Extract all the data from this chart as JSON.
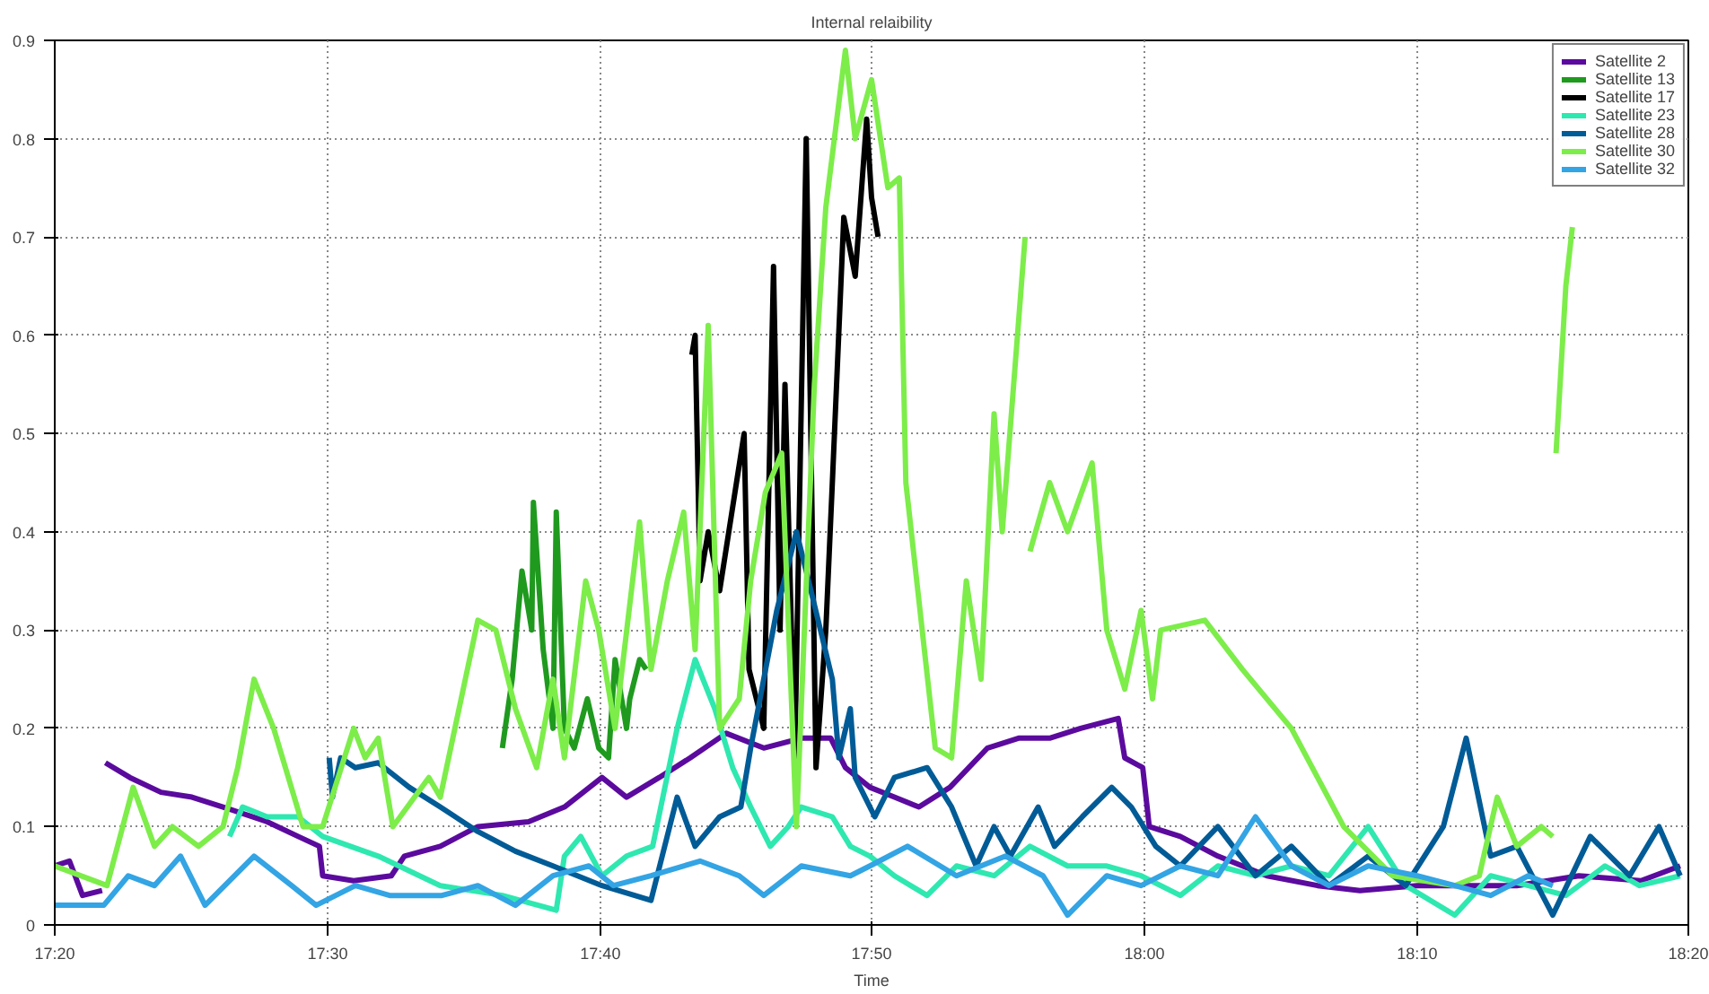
{
  "chart_data": {
    "type": "line",
    "title": "Internal relaibility",
    "xlabel": "Time",
    "xlim": [
      17.333,
      18.333
    ],
    "ylim": [
      0,
      0.9
    ],
    "xticks": [
      {
        "value": 17.333,
        "label": "17:20"
      },
      {
        "value": 17.5,
        "label": "17:30"
      },
      {
        "value": 17.667,
        "label": "17:40"
      },
      {
        "value": 17.833,
        "label": "17:50"
      },
      {
        "value": 18.0,
        "label": "18:00"
      },
      {
        "value": 18.167,
        "label": "18:10"
      },
      {
        "value": 18.333,
        "label": "18:20"
      }
    ],
    "yticks": [
      0,
      0.1,
      0.2,
      0.3,
      0.4,
      0.5,
      0.6,
      0.7,
      0.8,
      0.9
    ],
    "grid": true,
    "legend": "top right",
    "line_style": "solid",
    "series": [
      {
        "name": "Satellite 2",
        "color": "#5b0a9e",
        "x": [
          17.333,
          17.342,
          17.35,
          17.362,
          17.363,
          17.364,
          17.379,
          17.398,
          17.417,
          17.436,
          17.463,
          17.482,
          17.495,
          17.497,
          17.516,
          17.539,
          17.547,
          17.569,
          17.592,
          17.623,
          17.645,
          17.668,
          17.683,
          17.703,
          17.722,
          17.744,
          17.767,
          17.79,
          17.808,
          17.817,
          17.832,
          17.847,
          17.862,
          17.881,
          17.904,
          17.923,
          17.942,
          17.961,
          17.984,
          17.988,
          17.999,
          18.003,
          18.022,
          18.045,
          18.075,
          18.106,
          18.132,
          18.167,
          18.19,
          18.228,
          18.266,
          18.304,
          18.328
        ],
        "values": [
          0.06,
          0.065,
          0.03,
          0.035,
          null,
          0.165,
          0.15,
          0.135,
          0.13,
          0.12,
          0.105,
          0.09,
          0.08,
          0.05,
          0.045,
          0.05,
          0.07,
          0.08,
          0.1,
          0.105,
          0.12,
          0.15,
          0.13,
          0.15,
          0.17,
          0.195,
          0.18,
          0.19,
          0.19,
          0.16,
          0.14,
          0.13,
          0.12,
          0.14,
          0.18,
          0.19,
          0.19,
          0.2,
          0.21,
          0.17,
          0.16,
          0.1,
          0.09,
          0.07,
          0.05,
          0.04,
          0.035,
          0.04,
          0.04,
          0.04,
          0.05,
          0.045,
          0.06
        ]
      },
      {
        "name": "Satellite 13",
        "color": "#1f9a1f",
        "x": [
          17.607,
          17.613,
          17.619,
          17.625,
          17.626,
          17.632,
          17.638,
          17.64,
          17.645,
          17.651,
          17.659,
          17.666,
          17.672,
          17.676,
          17.683,
          17.685,
          17.691,
          17.695
        ],
        "values": [
          0.18,
          0.25,
          0.36,
          0.3,
          0.43,
          0.28,
          0.2,
          0.42,
          0.2,
          0.18,
          0.23,
          0.18,
          0.17,
          0.27,
          0.2,
          0.23,
          0.27,
          0.26
        ]
      },
      {
        "name": "Satellite 17",
        "color": "#000000",
        "x": [
          17.723,
          17.725,
          17.728,
          17.733,
          17.74,
          17.755,
          17.758,
          17.767,
          17.773,
          17.777,
          17.78,
          17.786,
          17.793,
          17.799,
          17.805,
          17.809,
          17.816,
          17.823,
          17.83,
          17.833,
          17.837
        ],
        "values": [
          0.58,
          0.6,
          0.35,
          0.4,
          0.34,
          0.5,
          0.26,
          0.2,
          0.67,
          0.3,
          0.55,
          0.17,
          0.8,
          0.16,
          0.3,
          0.45,
          0.72,
          0.66,
          0.82,
          0.74,
          0.7
        ]
      },
      {
        "name": "Satellite 23",
        "color": "#2ee8b0",
        "x": [
          17.44,
          17.448,
          17.463,
          17.482,
          17.497,
          17.531,
          17.569,
          17.607,
          17.64,
          17.645,
          17.655,
          17.668,
          17.683,
          17.699,
          17.714,
          17.725,
          17.737,
          17.748,
          17.759,
          17.771,
          17.782,
          17.79,
          17.809,
          17.82,
          17.832,
          17.847,
          17.867,
          17.885,
          17.908,
          17.93,
          17.953,
          17.977,
          17.998,
          18.022,
          18.045,
          18.068,
          18.09,
          18.113,
          18.137,
          18.16,
          18.19,
          18.212,
          18.235,
          18.258,
          18.282,
          18.303,
          18.328
        ],
        "values": [
          0.09,
          0.12,
          0.11,
          0.11,
          0.09,
          0.07,
          0.04,
          0.03,
          0.015,
          0.07,
          0.09,
          0.05,
          0.07,
          0.08,
          0.2,
          0.27,
          0.22,
          0.16,
          0.12,
          0.08,
          0.1,
          0.12,
          0.11,
          0.08,
          0.07,
          0.05,
          0.03,
          0.06,
          0.05,
          0.08,
          0.06,
          0.06,
          0.05,
          0.03,
          0.06,
          0.05,
          0.06,
          0.05,
          0.1,
          0.04,
          0.01,
          0.05,
          0.04,
          0.03,
          0.06,
          0.04,
          0.05
        ]
      },
      {
        "name": "Satellite 28",
        "color": "#005b96",
        "x": [
          17.501,
          17.503,
          17.508,
          17.517,
          17.531,
          17.55,
          17.569,
          17.592,
          17.615,
          17.638,
          17.668,
          17.698,
          17.714,
          17.725,
          17.74,
          17.753,
          17.759,
          17.775,
          17.787,
          17.793,
          17.809,
          17.813,
          17.82,
          17.823,
          17.835,
          17.847,
          17.867,
          17.882,
          17.897,
          17.908,
          17.918,
          17.935,
          17.945,
          17.962,
          17.98,
          17.992,
          18.007,
          18.022,
          18.045,
          18.068,
          18.09,
          18.113,
          18.137,
          18.16,
          18.183,
          18.197,
          18.212,
          18.228,
          18.25,
          18.273,
          18.297,
          18.315,
          18.328
        ],
        "values": [
          0.17,
          0.13,
          0.17,
          0.16,
          0.165,
          0.14,
          0.12,
          0.095,
          0.075,
          0.06,
          0.04,
          0.025,
          0.13,
          0.08,
          0.11,
          0.12,
          0.18,
          0.32,
          0.4,
          0.36,
          0.25,
          0.17,
          0.22,
          0.15,
          0.11,
          0.15,
          0.16,
          0.12,
          0.06,
          0.1,
          0.07,
          0.12,
          0.08,
          0.11,
          0.14,
          0.12,
          0.08,
          0.06,
          0.1,
          0.05,
          0.08,
          0.04,
          0.07,
          0.04,
          0.1,
          0.19,
          0.07,
          0.08,
          0.01,
          0.09,
          0.05,
          0.1,
          0.05
        ]
      },
      {
        "name": "Satellite 30",
        "color": "#7ded4a",
        "x": [
          17.333,
          17.365,
          17.381,
          17.394,
          17.405,
          17.421,
          17.436,
          17.445,
          17.455,
          17.467,
          17.485,
          17.497,
          17.516,
          17.523,
          17.531,
          17.54,
          17.562,
          17.569,
          17.592,
          17.603,
          17.615,
          17.628,
          17.638,
          17.645,
          17.658,
          17.666,
          17.676,
          17.691,
          17.698,
          17.708,
          17.718,
          17.725,
          17.733,
          17.74,
          17.752,
          17.759,
          17.768,
          17.778,
          17.787,
          17.798,
          17.805,
          17.817,
          17.823,
          17.833,
          17.843,
          17.85,
          17.854,
          17.862,
          17.872,
          17.882,
          17.891,
          17.9,
          17.908,
          17.913,
          17.927,
          17.928,
          17.93,
          17.942,
          17.953,
          17.968,
          17.977,
          17.988,
          17.998,
          18.005,
          18.01,
          18.037,
          18.06,
          18.09,
          18.122,
          18.152,
          18.19,
          18.205,
          18.216,
          18.228,
          18.243,
          18.25,
          18.251,
          18.252,
          18.258,
          18.262
        ],
        "values": [
          0.06,
          0.04,
          0.14,
          0.08,
          0.1,
          0.08,
          0.1,
          0.16,
          0.25,
          0.2,
          0.1,
          0.1,
          0.2,
          0.17,
          0.19,
          0.1,
          0.15,
          0.13,
          0.31,
          0.3,
          0.22,
          0.16,
          0.25,
          0.17,
          0.35,
          0.3,
          0.2,
          0.41,
          0.26,
          0.35,
          0.42,
          0.28,
          0.61,
          0.2,
          0.23,
          0.35,
          0.44,
          0.48,
          0.1,
          0.55,
          0.73,
          0.89,
          0.8,
          0.86,
          0.75,
          0.76,
          0.45,
          0.33,
          0.18,
          0.17,
          0.35,
          0.25,
          0.52,
          0.4,
          0.7,
          null,
          0.38,
          0.45,
          0.4,
          0.47,
          0.3,
          0.24,
          0.32,
          0.23,
          0.3,
          0.31,
          0.26,
          0.2,
          0.1,
          0.05,
          0.04,
          0.05,
          0.13,
          0.08,
          0.1,
          0.09,
          null,
          0.48,
          0.65,
          0.71
        ]
      },
      {
        "name": "Satellite 32",
        "color": "#33a4e4",
        "x": [
          17.333,
          17.363,
          17.378,
          17.394,
          17.41,
          17.425,
          17.455,
          17.478,
          17.493,
          17.517,
          17.538,
          17.57,
          17.592,
          17.615,
          17.638,
          17.66,
          17.675,
          17.698,
          17.728,
          17.752,
          17.767,
          17.79,
          17.82,
          17.832,
          17.855,
          17.885,
          17.915,
          17.938,
          17.953,
          17.977,
          17.998,
          18.022,
          18.045,
          18.068,
          18.09,
          18.113,
          18.137,
          18.167,
          18.19,
          18.212,
          18.235,
          18.25
        ],
        "values": [
          0.02,
          0.02,
          0.05,
          0.04,
          0.07,
          0.02,
          0.07,
          0.04,
          0.02,
          0.04,
          0.03,
          0.03,
          0.04,
          0.02,
          0.05,
          0.06,
          0.04,
          0.05,
          0.065,
          0.05,
          0.03,
          0.06,
          0.05,
          0.06,
          0.08,
          0.05,
          0.07,
          0.05,
          0.01,
          0.05,
          0.04,
          0.06,
          0.05,
          0.11,
          0.06,
          0.04,
          0.06,
          0.05,
          0.04,
          0.03,
          0.05,
          0.04
        ]
      }
    ]
  }
}
